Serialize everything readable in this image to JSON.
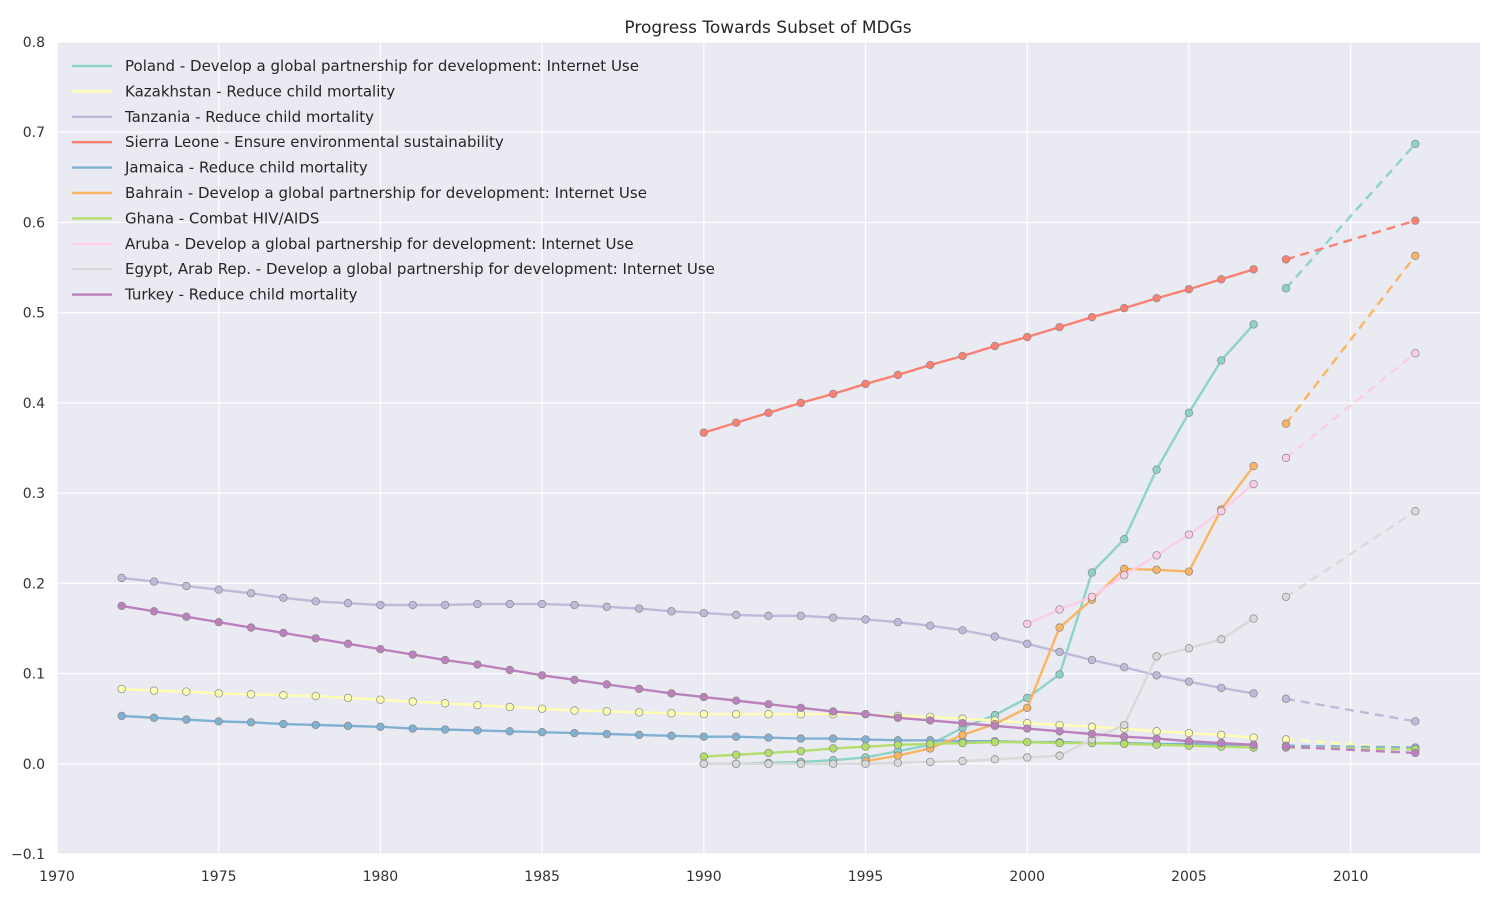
{
  "chart_data": {
    "type": "line",
    "title": "Progress Towards Subset of MDGs",
    "xlabel": "",
    "ylabel": "",
    "xlim": [
      1970,
      2014
    ],
    "ylim": [
      -0.1,
      0.8
    ],
    "xticks": [
      1970,
      1975,
      1980,
      1985,
      1990,
      1995,
      2000,
      2005,
      2010
    ],
    "xtick_labels": [
      "1970",
      "1975",
      "1980",
      "1985",
      "1990",
      "1995",
      "2000",
      "2005",
      "2010"
    ],
    "yticks": [
      -0.1,
      0.0,
      0.1,
      0.2,
      0.3,
      0.4,
      0.5,
      0.6,
      0.7,
      0.8
    ],
    "ytick_labels": [
      "−0.1",
      "0.0",
      "0.1",
      "0.2",
      "0.3",
      "0.4",
      "0.5",
      "0.6",
      "0.7",
      "0.8"
    ],
    "grid": true,
    "legend_position": "top-left",
    "background_color": "#EAEAF2",
    "projection_style": "dashed lines from 2008 to 2012",
    "series": [
      {
        "name": "Poland - Develop a global partnership for development: Internet Use",
        "color": "#8DD3C7",
        "x": [
          1990,
          1991,
          1992,
          1993,
          1994,
          1995,
          1996,
          1997,
          1998,
          1999,
          2000,
          2001,
          2002,
          2003,
          2004,
          2005,
          2006,
          2007
        ],
        "y": [
          0.0,
          0.0,
          0.001,
          0.002,
          0.004,
          0.007,
          0.014,
          0.021,
          0.04,
          0.054,
          0.073,
          0.099,
          0.212,
          0.249,
          0.326,
          0.389,
          0.447,
          0.487
        ],
        "projection": {
          "x": [
            2008,
            2012
          ],
          "y": [
            0.527,
            0.687
          ]
        }
      },
      {
        "name": "Kazakhstan - Reduce child mortality",
        "color": "#FFFFB3",
        "x": [
          1972,
          1973,
          1974,
          1975,
          1976,
          1977,
          1978,
          1979,
          1980,
          1981,
          1982,
          1983,
          1984,
          1985,
          1986,
          1987,
          1988,
          1989,
          1990,
          1991,
          1992,
          1993,
          1994,
          1995,
          1996,
          1997,
          1998,
          1999,
          2000,
          2001,
          2002,
          2003,
          2004,
          2005,
          2006,
          2007
        ],
        "y": [
          0.083,
          0.081,
          0.08,
          0.078,
          0.077,
          0.076,
          0.075,
          0.073,
          0.071,
          0.069,
          0.067,
          0.065,
          0.063,
          0.061,
          0.059,
          0.058,
          0.057,
          0.056,
          0.055,
          0.055,
          0.055,
          0.055,
          0.055,
          0.055,
          0.053,
          0.052,
          0.05,
          0.048,
          0.045,
          0.043,
          0.041,
          0.039,
          0.036,
          0.034,
          0.032,
          0.029
        ],
        "projection": {
          "x": [
            2008,
            2012
          ],
          "y": [
            0.027,
            0.016
          ]
        }
      },
      {
        "name": "Tanzania - Reduce child mortality",
        "color": "#BEBADA",
        "x": [
          1972,
          1973,
          1974,
          1975,
          1976,
          1977,
          1978,
          1979,
          1980,
          1981,
          1982,
          1983,
          1984,
          1985,
          1986,
          1987,
          1988,
          1989,
          1990,
          1991,
          1992,
          1993,
          1994,
          1995,
          1996,
          1997,
          1998,
          1999,
          2000,
          2001,
          2002,
          2003,
          2004,
          2005,
          2006,
          2007
        ],
        "y": [
          0.206,
          0.202,
          0.197,
          0.193,
          0.189,
          0.184,
          0.18,
          0.178,
          0.176,
          0.176,
          0.176,
          0.177,
          0.177,
          0.177,
          0.176,
          0.174,
          0.172,
          0.169,
          0.167,
          0.165,
          0.164,
          0.164,
          0.162,
          0.16,
          0.157,
          0.153,
          0.148,
          0.141,
          0.133,
          0.124,
          0.115,
          0.107,
          0.098,
          0.091,
          0.084,
          0.078
        ],
        "projection": {
          "x": [
            2008,
            2012
          ],
          "y": [
            0.072,
            0.047
          ]
        }
      },
      {
        "name": "Sierra Leone - Ensure environmental sustainability",
        "color": "#FB8072",
        "x": [
          1990,
          1991,
          1992,
          1993,
          1994,
          1995,
          1996,
          1997,
          1998,
          1999,
          2000,
          2001,
          2002,
          2003,
          2004,
          2005,
          2006,
          2007
        ],
        "y": [
          0.367,
          0.378,
          0.389,
          0.4,
          0.41,
          0.421,
          0.431,
          0.442,
          0.452,
          0.463,
          0.473,
          0.484,
          0.495,
          0.505,
          0.516,
          0.526,
          0.537,
          0.548
        ],
        "projection": {
          "x": [
            2008,
            2012
          ],
          "y": [
            0.559,
            0.602
          ]
        }
      },
      {
        "name": "Jamaica - Reduce child mortality",
        "color": "#80B1D3",
        "x": [
          1972,
          1973,
          1974,
          1975,
          1976,
          1977,
          1978,
          1979,
          1980,
          1981,
          1982,
          1983,
          1984,
          1985,
          1986,
          1987,
          1988,
          1989,
          1990,
          1991,
          1992,
          1993,
          1994,
          1995,
          1996,
          1997,
          1998,
          1999,
          2000,
          2001,
          2002,
          2003,
          2004,
          2005,
          2006,
          2007
        ],
        "y": [
          0.053,
          0.051,
          0.049,
          0.047,
          0.046,
          0.044,
          0.043,
          0.042,
          0.041,
          0.039,
          0.038,
          0.037,
          0.036,
          0.035,
          0.034,
          0.033,
          0.032,
          0.031,
          0.03,
          0.03,
          0.029,
          0.028,
          0.028,
          0.027,
          0.026,
          0.026,
          0.025,
          0.025,
          0.024,
          0.024,
          0.023,
          0.023,
          0.022,
          0.022,
          0.021,
          0.021
        ],
        "projection": {
          "x": [
            2008,
            2012
          ],
          "y": [
            0.02,
            0.018
          ]
        }
      },
      {
        "name": "Bahrain - Develop a global partnership for development: Internet Use",
        "color": "#FDB462",
        "x": [
          1995,
          1996,
          1997,
          1998,
          1999,
          2000,
          2001,
          2002,
          2003,
          2004,
          2005,
          2006,
          2007
        ],
        "y": [
          0.003,
          0.009,
          0.017,
          0.032,
          0.044,
          0.062,
          0.151,
          0.182,
          0.216,
          0.215,
          0.213,
          0.282,
          0.33
        ],
        "projection": {
          "x": [
            2008,
            2012
          ],
          "y": [
            0.377,
            0.563
          ]
        }
      },
      {
        "name": "Ghana - Combat HIV/AIDS",
        "color": "#B3DE69",
        "x": [
          1990,
          1991,
          1992,
          1993,
          1994,
          1995,
          1996,
          1997,
          1998,
          1999,
          2000,
          2001,
          2002,
          2003,
          2004,
          2005,
          2006,
          2007
        ],
        "y": [
          0.008,
          0.01,
          0.012,
          0.014,
          0.017,
          0.019,
          0.021,
          0.022,
          0.023,
          0.024,
          0.024,
          0.023,
          0.023,
          0.022,
          0.021,
          0.02,
          0.019,
          0.018
        ],
        "projection": {
          "x": [
            2008,
            2012
          ],
          "y": [
            0.018,
            0.016
          ]
        }
      },
      {
        "name": "Aruba - Develop a global partnership for development: Internet Use",
        "color": "#FCCDE5",
        "x": [
          2000,
          2001,
          2002,
          2003,
          2004,
          2005,
          2006,
          2007
        ],
        "y": [
          0.155,
          0.171,
          0.185,
          0.209,
          0.231,
          0.254,
          0.28,
          0.31
        ],
        "projection": {
          "x": [
            2008,
            2012
          ],
          "y": [
            0.339,
            0.455
          ]
        }
      },
      {
        "name": "Egypt, Arab Rep. - Develop a global partnership for development: Internet Use",
        "color": "#D9D9D9",
        "x": [
          1990,
          1991,
          1992,
          1993,
          1994,
          1995,
          1996,
          1997,
          1998,
          1999,
          2000,
          2001,
          2002,
          2003,
          2004,
          2005,
          2006,
          2007
        ],
        "y": [
          0.0,
          0.0,
          0.0,
          0.0,
          0.0,
          0.0,
          0.001,
          0.002,
          0.003,
          0.005,
          0.007,
          0.009,
          0.027,
          0.043,
          0.119,
          0.128,
          0.138,
          0.161
        ],
        "projection": {
          "x": [
            2008,
            2012
          ],
          "y": [
            0.185,
            0.28
          ]
        }
      },
      {
        "name": "Turkey - Reduce child mortality",
        "color": "#BC80BD",
        "x": [
          1972,
          1973,
          1974,
          1975,
          1976,
          1977,
          1978,
          1979,
          1980,
          1981,
          1982,
          1983,
          1984,
          1985,
          1986,
          1987,
          1988,
          1989,
          1990,
          1991,
          1992,
          1993,
          1994,
          1995,
          1996,
          1997,
          1998,
          1999,
          2000,
          2001,
          2002,
          2003,
          2004,
          2005,
          2006,
          2007
        ],
        "y": [
          0.175,
          0.169,
          0.163,
          0.157,
          0.151,
          0.145,
          0.139,
          0.133,
          0.127,
          0.121,
          0.115,
          0.11,
          0.104,
          0.098,
          0.093,
          0.088,
          0.083,
          0.078,
          0.074,
          0.07,
          0.066,
          0.062,
          0.058,
          0.055,
          0.051,
          0.048,
          0.045,
          0.042,
          0.039,
          0.036,
          0.033,
          0.03,
          0.028,
          0.025,
          0.023,
          0.021
        ],
        "projection": {
          "x": [
            2008,
            2012
          ],
          "y": [
            0.019,
            0.012
          ]
        }
      }
    ]
  }
}
